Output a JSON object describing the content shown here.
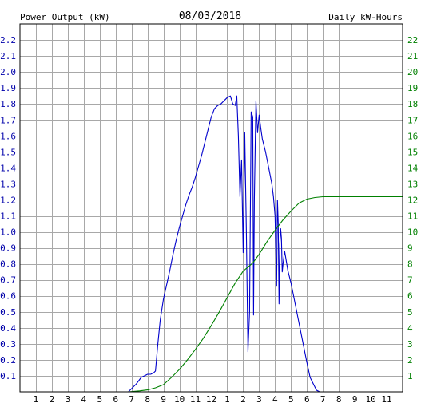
{
  "chart_data": {
    "type": "line",
    "title": "08/03/2018",
    "left_axis_label": "Power Output (kW)",
    "right_axis_label": "Daily kW-Hours",
    "x_ticks": [
      "1",
      "2",
      "3",
      "4",
      "5",
      "6",
      "7",
      "8",
      "9",
      "10",
      "11",
      "12",
      "1",
      "2",
      "3",
      "4",
      "5",
      "6",
      "7",
      "8",
      "9",
      "10",
      "11"
    ],
    "x_range": [
      0,
      24
    ],
    "y_left_ticks": [
      "0.1",
      "0.2",
      "0.3",
      "0.4",
      "0.5",
      "0.6",
      "0.7",
      "0.8",
      "0.9",
      "1.0",
      "1.1",
      "1.2",
      "1.3",
      "1.4",
      "1.5",
      "1.6",
      "1.7",
      "1.8",
      "1.9",
      "2.0",
      "2.1",
      "2.2"
    ],
    "y_left_range": [
      0,
      2.3
    ],
    "y_right_ticks": [
      "1",
      "2",
      "3",
      "4",
      "5",
      "6",
      "7",
      "8",
      "9",
      "10",
      "11",
      "12",
      "13",
      "14",
      "15",
      "16",
      "17",
      "18",
      "19",
      "20",
      "21",
      "22"
    ],
    "y_right_range": [
      0,
      23
    ],
    "grid": true,
    "colors": {
      "power": "#0000cc",
      "energy": "#008000",
      "left_axis_text": "#0000aa",
      "right_axis_text": "#008000",
      "grid": "#a8a8a8",
      "frame": "#000000"
    },
    "series": [
      {
        "axis": "left",
        "points": [
          [
            6.8,
            0
          ],
          [
            7.0,
            0.02
          ],
          [
            7.3,
            0.05
          ],
          [
            7.6,
            0.09
          ],
          [
            7.8,
            0.1
          ],
          [
            8.0,
            0.11
          ],
          [
            8.2,
            0.11
          ],
          [
            8.4,
            0.12
          ],
          [
            8.5,
            0.13
          ],
          [
            8.65,
            0.3
          ],
          [
            8.8,
            0.45
          ],
          [
            9.0,
            0.58
          ],
          [
            9.2,
            0.67
          ],
          [
            9.4,
            0.76
          ],
          [
            9.6,
            0.86
          ],
          [
            9.8,
            0.95
          ],
          [
            10.0,
            1.03
          ],
          [
            10.2,
            1.1
          ],
          [
            10.4,
            1.17
          ],
          [
            10.6,
            1.23
          ],
          [
            10.8,
            1.28
          ],
          [
            11.0,
            1.34
          ],
          [
            11.2,
            1.41
          ],
          [
            11.4,
            1.48
          ],
          [
            11.6,
            1.56
          ],
          [
            11.8,
            1.64
          ],
          [
            12.0,
            1.72
          ],
          [
            12.2,
            1.77
          ],
          [
            12.4,
            1.79
          ],
          [
            12.6,
            1.8
          ],
          [
            12.8,
            1.82
          ],
          [
            13.0,
            1.84
          ],
          [
            13.2,
            1.85
          ],
          [
            13.35,
            1.8
          ],
          [
            13.5,
            1.79
          ],
          [
            13.6,
            1.85
          ],
          [
            13.7,
            1.6
          ],
          [
            13.8,
            1.22
          ],
          [
            13.9,
            1.45
          ],
          [
            14.0,
            0.87
          ],
          [
            14.1,
            1.62
          ],
          [
            14.2,
            1.0
          ],
          [
            14.3,
            0.25
          ],
          [
            14.4,
            0.5
          ],
          [
            14.5,
            1.75
          ],
          [
            14.6,
            1.72
          ],
          [
            14.65,
            0.48
          ],
          [
            14.7,
            1.2
          ],
          [
            14.8,
            1.82
          ],
          [
            14.9,
            1.62
          ],
          [
            15.0,
            1.73
          ],
          [
            15.1,
            1.65
          ],
          [
            15.2,
            1.58
          ],
          [
            15.4,
            1.5
          ],
          [
            15.6,
            1.4
          ],
          [
            15.8,
            1.3
          ],
          [
            15.9,
            1.22
          ],
          [
            16.0,
            1.1
          ],
          [
            16.1,
            0.66
          ],
          [
            16.15,
            1.2
          ],
          [
            16.2,
            1.05
          ],
          [
            16.25,
            0.55
          ],
          [
            16.3,
            0.92
          ],
          [
            16.35,
            1.02
          ],
          [
            16.4,
            0.96
          ],
          [
            16.45,
            0.75
          ],
          [
            16.5,
            0.8
          ],
          [
            16.6,
            0.88
          ],
          [
            16.7,
            0.82
          ],
          [
            16.8,
            0.76
          ],
          [
            17.0,
            0.68
          ],
          [
            17.2,
            0.58
          ],
          [
            17.4,
            0.48
          ],
          [
            17.6,
            0.38
          ],
          [
            17.8,
            0.28
          ],
          [
            18.0,
            0.18
          ],
          [
            18.2,
            0.09
          ],
          [
            18.4,
            0.05
          ],
          [
            18.6,
            0.01
          ],
          [
            18.8,
            0
          ]
        ]
      },
      {
        "axis": "right",
        "points": [
          [
            6.8,
            0
          ],
          [
            7.5,
            0.06
          ],
          [
            8.0,
            0.12
          ],
          [
            8.5,
            0.25
          ],
          [
            9.0,
            0.45
          ],
          [
            9.5,
            0.9
          ],
          [
            10.0,
            1.4
          ],
          [
            10.5,
            2.0
          ],
          [
            11.0,
            2.65
          ],
          [
            11.5,
            3.35
          ],
          [
            12.0,
            4.15
          ],
          [
            12.5,
            5.0
          ],
          [
            13.0,
            5.9
          ],
          [
            13.5,
            6.8
          ],
          [
            14.0,
            7.55
          ],
          [
            14.3,
            7.8
          ],
          [
            14.6,
            8.05
          ],
          [
            15.0,
            8.6
          ],
          [
            15.5,
            9.4
          ],
          [
            16.0,
            10.1
          ],
          [
            16.5,
            10.75
          ],
          [
            17.0,
            11.3
          ],
          [
            17.5,
            11.8
          ],
          [
            18.0,
            12.05
          ],
          [
            18.5,
            12.15
          ],
          [
            19.0,
            12.2
          ],
          [
            20.0,
            12.2
          ],
          [
            21.0,
            12.2
          ],
          [
            22.0,
            12.2
          ],
          [
            23.0,
            12.2
          ],
          [
            24.0,
            12.2
          ]
        ]
      }
    ]
  }
}
